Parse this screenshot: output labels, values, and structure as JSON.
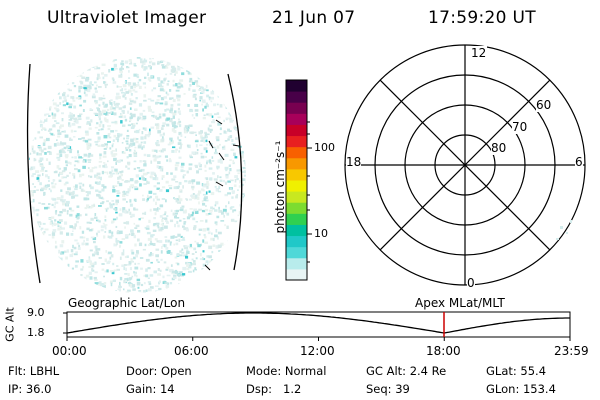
{
  "header": {
    "title": "Ultraviolet Imager",
    "date": "21 Jun 07",
    "time": "17:59:20 UT"
  },
  "colorbar": {
    "unit_label": "photon cm⁻²s⁻¹",
    "ticks": [
      "100",
      "10"
    ],
    "colors": [
      "#e8f4f4",
      "#b8ecec",
      "#4fd8d8",
      "#20c8c8",
      "#00c0a0",
      "#30d050",
      "#7ddc30",
      "#c8e820",
      "#f0f000",
      "#f8c800",
      "#f89800",
      "#f86000",
      "#e82020",
      "#c80028",
      "#a8005a",
      "#780050",
      "#480048",
      "#200030"
    ]
  },
  "polar": {
    "ring_labels": [
      "80",
      "70",
      "60"
    ],
    "hour_labels": {
      "top": "12",
      "bottom": "0",
      "left": "18",
      "right": "6"
    }
  },
  "timeline": {
    "y_axis_label": "GC Alt",
    "y_ticks": [
      "9.0",
      "1.8"
    ],
    "left_title": "Geographic Lat/Lon",
    "right_title": "Apex MLat/MLT",
    "x_ticks": [
      "00:00",
      "06:00",
      "12:00",
      "18:00",
      "23:59"
    ],
    "current_time_fraction": 0.7495,
    "marker_color": "#cc0000"
  },
  "footer": {
    "rows": [
      [
        {
          "key": "Flt:",
          "val": "LBHL"
        },
        {
          "key": "Door:",
          "val": "Open"
        },
        {
          "key": "Mode:",
          "val": "Normal"
        },
        {
          "key": "GC Alt:",
          "val": "2.4 Re"
        },
        {
          "key": "GLat:",
          "val": "55.4"
        }
      ],
      [
        {
          "key": "IP:",
          "val": "36.0"
        },
        {
          "key": "Gain:",
          "val": "14"
        },
        {
          "key": "Dsp:",
          "val": "1.2"
        },
        {
          "key": "Seq:",
          "val": "39"
        },
        {
          "key": "GLon:",
          "val": "153.4"
        }
      ]
    ]
  }
}
